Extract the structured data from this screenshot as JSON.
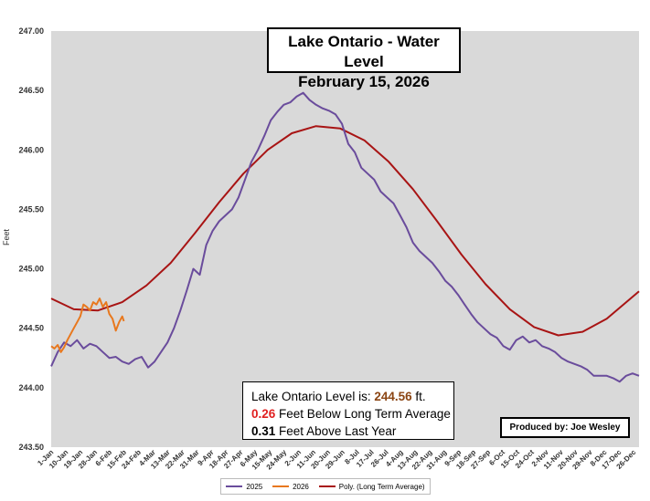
{
  "title": {
    "line1": "Lake Ontario - Water Level",
    "line2": "February 15, 2026"
  },
  "info": {
    "level_label": "Lake Ontario Level is:",
    "level_value": "244.56",
    "level_unit": "ft.",
    "below_value": "0.26",
    "below_text": "Feet Below Long Term Average",
    "above_value": "0.31",
    "above_text": "Feet Above Last Year"
  },
  "credit": "Produced by: Joe Wesley",
  "colors": {
    "s2025": "#6A4C9C",
    "s2026": "#E8781E",
    "avg": "#A81414",
    "plot_bg": "#D9D9D9"
  },
  "chart_data": {
    "type": "line",
    "title": "Lake Ontario - Water Level February 15, 2026",
    "xlabel": "",
    "ylabel": "Feet",
    "ylim": [
      243.5,
      247.0
    ],
    "yticks": [
      "243.50",
      "244.00",
      "244.50",
      "245.00",
      "245.50",
      "246.00",
      "246.50",
      "247.00"
    ],
    "xticks": [
      "1-Jan",
      "10-Jan",
      "19-Jan",
      "28-Jan",
      "6-Feb",
      "15-Feb",
      "24-Feb",
      "4-Mar",
      "13-Mar",
      "22-Mar",
      "31-Mar",
      "9-Apr",
      "18-Apr",
      "27-Apr",
      "6-May",
      "15-May",
      "24-May",
      "2-Jun",
      "11-Jun",
      "20-Jun",
      "29-Jun",
      "8-Jul",
      "17-Jul",
      "26-Jul",
      "4-Aug",
      "13-Aug",
      "22-Aug",
      "31-Aug",
      "9-Sep",
      "18-Sep",
      "27-Sep",
      "6-Oct",
      "15-Oct",
      "24-Oct",
      "2-Nov",
      "11-Nov",
      "20-Nov",
      "29-Nov",
      "8-Dec",
      "17-Dec",
      "26-Dec"
    ],
    "grid": false,
    "legend": "bottom",
    "series": [
      {
        "name": "2025",
        "day_of_year": [
          1,
          5,
          9,
          13,
          17,
          21,
          25,
          29,
          33,
          37,
          41,
          45,
          49,
          53,
          57,
          61,
          65,
          69,
          73,
          77,
          81,
          85,
          89,
          93,
          97,
          101,
          105,
          109,
          113,
          117,
          121,
          125,
          129,
          133,
          137,
          141,
          145,
          149,
          153,
          157,
          161,
          165,
          169,
          173,
          177,
          181,
          185,
          189,
          193,
          197,
          201,
          205,
          209,
          213,
          217,
          221,
          225,
          229,
          233,
          237,
          241,
          245,
          249,
          253,
          257,
          261,
          265,
          269,
          273,
          277,
          281,
          285,
          289,
          293,
          297,
          301,
          305,
          309,
          313,
          317,
          321,
          325,
          329,
          333,
          337,
          341,
          345,
          349,
          353,
          357,
          361,
          365
        ],
        "values": [
          244.18,
          244.3,
          244.38,
          244.35,
          244.4,
          244.33,
          244.37,
          244.35,
          244.3,
          244.25,
          244.26,
          244.22,
          244.2,
          244.24,
          244.26,
          244.17,
          244.22,
          244.3,
          244.38,
          244.5,
          244.65,
          244.82,
          245.0,
          244.95,
          245.2,
          245.32,
          245.4,
          245.45,
          245.5,
          245.6,
          245.75,
          245.9,
          246.0,
          246.12,
          246.25,
          246.32,
          246.38,
          246.4,
          246.45,
          246.48,
          246.42,
          246.38,
          246.35,
          246.33,
          246.3,
          246.22,
          246.05,
          245.98,
          245.85,
          245.8,
          245.75,
          245.65,
          245.6,
          245.55,
          245.45,
          245.35,
          245.22,
          245.15,
          245.1,
          245.05,
          244.98,
          244.9,
          244.85,
          244.78,
          244.7,
          244.62,
          244.55,
          244.5,
          244.45,
          244.42,
          244.35,
          244.32,
          244.4,
          244.43,
          244.38,
          244.4,
          244.35,
          244.33,
          244.3,
          244.25,
          244.22,
          244.2,
          244.18,
          244.15,
          244.1,
          244.1,
          244.1,
          244.08,
          244.05,
          244.1,
          244.12,
          244.1
        ]
      },
      {
        "name": "2026",
        "day_of_year": [
          1,
          3,
          5,
          7,
          9,
          11,
          13,
          15,
          17,
          19,
          21,
          23,
          25,
          27,
          29,
          31,
          33,
          35,
          37,
          39,
          41,
          43,
          45,
          46
        ],
        "values": [
          244.35,
          244.33,
          244.36,
          244.3,
          244.34,
          244.4,
          244.45,
          244.5,
          244.55,
          244.6,
          244.7,
          244.68,
          244.65,
          244.72,
          244.7,
          244.75,
          244.68,
          244.72,
          244.62,
          244.58,
          244.48,
          244.55,
          244.6,
          244.56
        ]
      },
      {
        "name": "Poly. (Long Term Average)",
        "day_of_year": [
          1,
          15,
          30,
          45,
          60,
          75,
          90,
          105,
          120,
          135,
          150,
          165,
          180,
          195,
          210,
          225,
          240,
          255,
          270,
          285,
          300,
          315,
          330,
          345,
          365
        ],
        "values": [
          244.75,
          244.66,
          244.65,
          244.72,
          244.86,
          245.05,
          245.3,
          245.56,
          245.8,
          246.0,
          246.14,
          246.2,
          246.18,
          246.08,
          245.9,
          245.67,
          245.4,
          245.12,
          244.87,
          244.66,
          244.51,
          244.44,
          244.47,
          244.58,
          244.81
        ]
      }
    ]
  }
}
